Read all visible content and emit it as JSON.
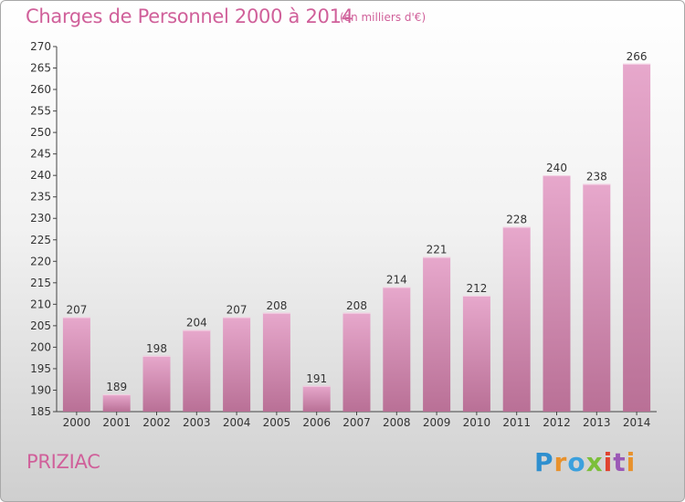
{
  "header": {
    "title": "Charges de Personnel 2000 à 2014",
    "subtitle": "(en milliers d'€)"
  },
  "footer": {
    "commune": "PRIZIAC",
    "logo_text": "Proxiti",
    "logo_colors": [
      "#2e8fcf",
      "#e8912b",
      "#3ba0dd",
      "#7cbf3a",
      "#e0422f",
      "#9b59b6",
      "#e8912b"
    ]
  },
  "colors": {
    "accent": "#d0609a",
    "bar_top": "#e7a8cc",
    "bar_bottom": "#b97096",
    "axis": "#444444"
  },
  "chart_data": {
    "type": "bar",
    "categories": [
      "2000",
      "2001",
      "2002",
      "2003",
      "2004",
      "2005",
      "2006",
      "2007",
      "2008",
      "2009",
      "2010",
      "2011",
      "2012",
      "2013",
      "2014"
    ],
    "values": [
      207,
      189,
      198,
      204,
      207,
      208,
      191,
      208,
      214,
      221,
      212,
      228,
      240,
      238,
      266
    ],
    "ylim": [
      185,
      270
    ],
    "ytick_step": 5,
    "grid": false,
    "data_labels": true
  }
}
